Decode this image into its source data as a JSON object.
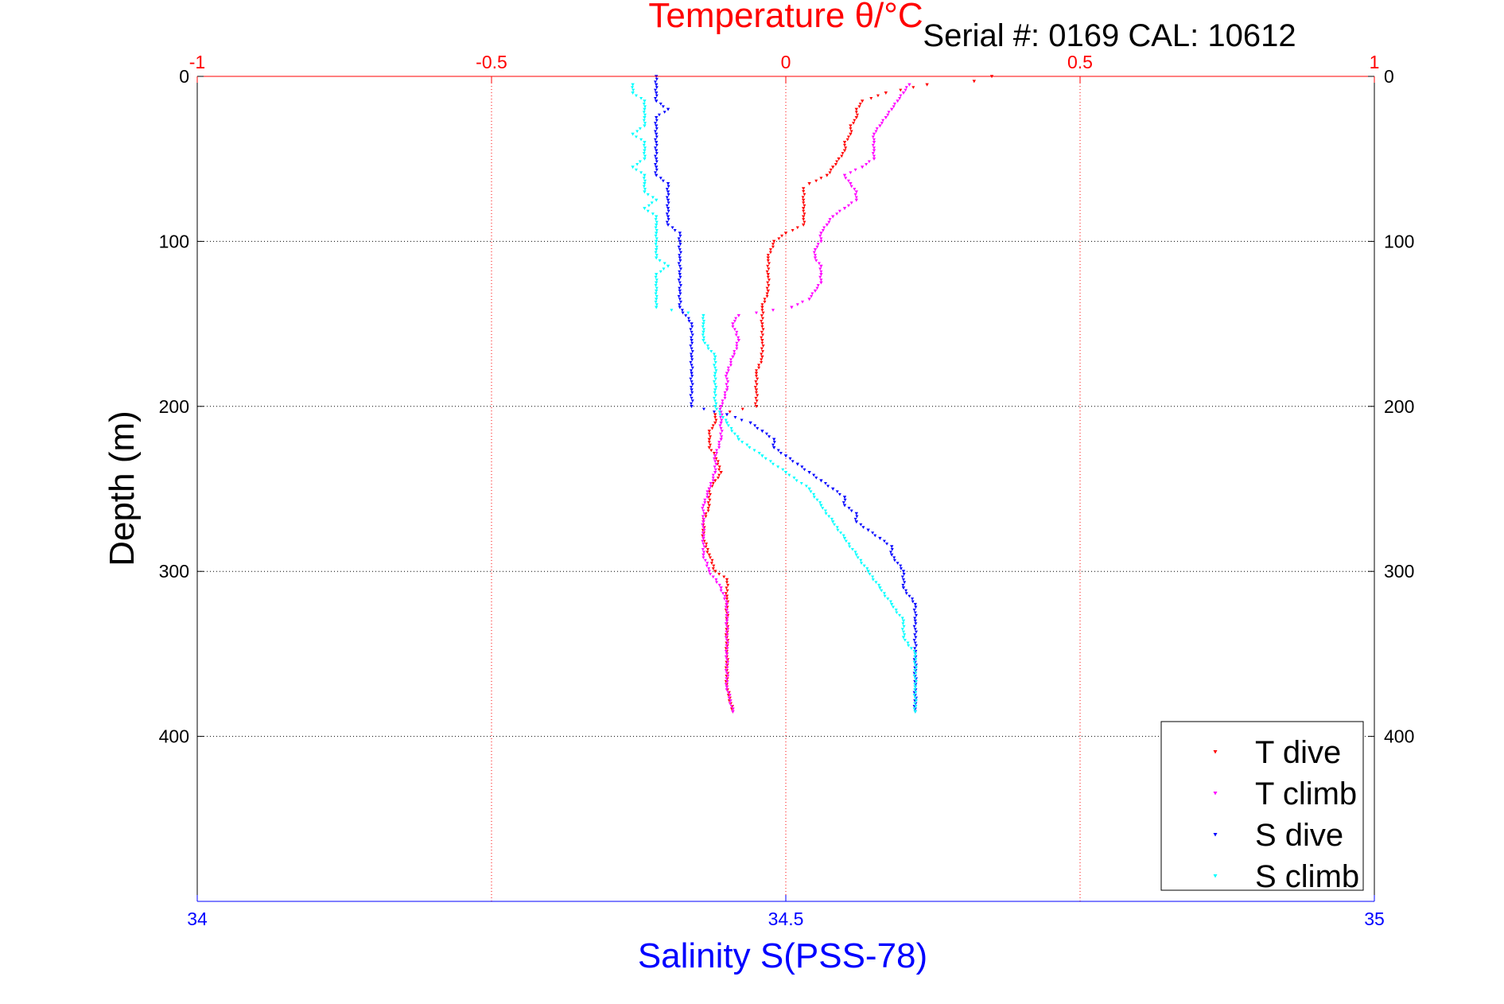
{
  "chart_data": {
    "type": "scatter",
    "title": "Temperature θ/°C",
    "subtitle": "Serial #: 0169 CAL: 10612",
    "ylabel": "Depth (m)",
    "xlabel": "Salinity S(PSS-78)",
    "y_axis": {
      "range": [
        0,
        500
      ],
      "reversed": true,
      "ticks": [
        0,
        100,
        200,
        300,
        400
      ],
      "tick_labels": [
        "0",
        "100",
        "200",
        "300",
        "400"
      ]
    },
    "x_top_temperature": {
      "range": [
        -1,
        1
      ],
      "ticks": [
        -1,
        -0.5,
        0,
        0.5,
        1
      ],
      "tick_labels": [
        "-1",
        "-0.5",
        "0",
        "0.5",
        "1"
      ]
    },
    "x_bottom_salinity": {
      "range": [
        34,
        35
      ],
      "ticks": [
        34,
        34.5,
        35
      ],
      "tick_labels": [
        "34",
        "34.5",
        "35"
      ]
    },
    "grid": true,
    "legend_position": "bottom-right",
    "series": [
      {
        "name": "T dive",
        "axis": "temperature",
        "color": "#ff0000",
        "points": [
          [
            0.35,
            0
          ],
          [
            0.32,
            3
          ],
          [
            0.24,
            5
          ],
          [
            0.17,
            10
          ],
          [
            0.13,
            15
          ],
          [
            0.12,
            20
          ],
          [
            0.12,
            25
          ],
          [
            0.11,
            30
          ],
          [
            0.11,
            35
          ],
          [
            0.1,
            40
          ],
          [
            0.1,
            45
          ],
          [
            0.09,
            50
          ],
          [
            0.08,
            55
          ],
          [
            0.07,
            60
          ],
          [
            0.04,
            65
          ],
          [
            0.03,
            68
          ],
          [
            0.03,
            75
          ],
          [
            0.03,
            80
          ],
          [
            0.03,
            85
          ],
          [
            0.03,
            90
          ],
          [
            0.0,
            95
          ],
          [
            -0.02,
            100
          ],
          [
            -0.03,
            110
          ],
          [
            -0.03,
            120
          ],
          [
            -0.03,
            130
          ],
          [
            -0.04,
            140
          ],
          [
            -0.04,
            150
          ],
          [
            -0.04,
            160
          ],
          [
            -0.04,
            170
          ],
          [
            -0.05,
            180
          ],
          [
            -0.05,
            190
          ],
          [
            -0.05,
            200
          ],
          [
            -0.12,
            205
          ],
          [
            -0.12,
            210
          ],
          [
            -0.13,
            215
          ],
          [
            -0.13,
            220
          ],
          [
            -0.13,
            225
          ],
          [
            -0.12,
            230
          ],
          [
            -0.11,
            240
          ],
          [
            -0.12,
            245
          ],
          [
            -0.13,
            250
          ],
          [
            -0.13,
            260
          ],
          [
            -0.14,
            270
          ],
          [
            -0.14,
            280
          ],
          [
            -0.13,
            290
          ],
          [
            -0.12,
            300
          ],
          [
            -0.1,
            305
          ],
          [
            -0.1,
            315
          ],
          [
            -0.1,
            330
          ],
          [
            -0.1,
            350
          ],
          [
            -0.1,
            370
          ],
          [
            -0.09,
            385
          ]
        ]
      },
      {
        "name": "T climb",
        "axis": "temperature",
        "color": "#ff00ff",
        "points": [
          [
            0.21,
            5
          ],
          [
            0.2,
            10
          ],
          [
            0.19,
            15
          ],
          [
            0.18,
            20
          ],
          [
            0.17,
            25
          ],
          [
            0.16,
            30
          ],
          [
            0.15,
            35
          ],
          [
            0.15,
            40
          ],
          [
            0.15,
            45
          ],
          [
            0.15,
            50
          ],
          [
            0.13,
            55
          ],
          [
            0.1,
            60
          ],
          [
            0.11,
            65
          ],
          [
            0.12,
            70
          ],
          [
            0.12,
            75
          ],
          [
            0.1,
            80
          ],
          [
            0.08,
            85
          ],
          [
            0.07,
            90
          ],
          [
            0.06,
            95
          ],
          [
            0.06,
            100
          ],
          [
            0.05,
            105
          ],
          [
            0.05,
            110
          ],
          [
            0.06,
            115
          ],
          [
            0.06,
            120
          ],
          [
            0.06,
            125
          ],
          [
            0.05,
            130
          ],
          [
            0.04,
            135
          ],
          [
            0.01,
            140
          ],
          [
            -0.08,
            145
          ],
          [
            -0.09,
            150
          ],
          [
            -0.08,
            160
          ],
          [
            -0.09,
            170
          ],
          [
            -0.1,
            180
          ],
          [
            -0.1,
            190
          ],
          [
            -0.11,
            200
          ],
          [
            -0.11,
            210
          ],
          [
            -0.11,
            220
          ],
          [
            -0.12,
            230
          ],
          [
            -0.12,
            240
          ],
          [
            -0.13,
            250
          ],
          [
            -0.14,
            260
          ],
          [
            -0.14,
            270
          ],
          [
            -0.14,
            280
          ],
          [
            -0.14,
            290
          ],
          [
            -0.13,
            300
          ],
          [
            -0.11,
            310
          ],
          [
            -0.1,
            320
          ],
          [
            -0.1,
            330
          ],
          [
            -0.1,
            350
          ],
          [
            -0.1,
            370
          ],
          [
            -0.09,
            385
          ]
        ]
      },
      {
        "name": "S dive",
        "axis": "salinity",
        "color": "#0000ff",
        "points": [
          [
            34.39,
            0
          ],
          [
            34.39,
            5
          ],
          [
            34.39,
            10
          ],
          [
            34.39,
            15
          ],
          [
            34.4,
            20
          ],
          [
            34.39,
            25
          ],
          [
            34.39,
            30
          ],
          [
            34.39,
            35
          ],
          [
            34.39,
            40
          ],
          [
            34.39,
            45
          ],
          [
            34.39,
            50
          ],
          [
            34.39,
            55
          ],
          [
            34.39,
            60
          ],
          [
            34.4,
            65
          ],
          [
            34.4,
            70
          ],
          [
            34.4,
            75
          ],
          [
            34.4,
            80
          ],
          [
            34.4,
            85
          ],
          [
            34.4,
            90
          ],
          [
            34.41,
            95
          ],
          [
            34.41,
            100
          ],
          [
            34.41,
            110
          ],
          [
            34.41,
            120
          ],
          [
            34.41,
            130
          ],
          [
            34.41,
            140
          ],
          [
            34.42,
            150
          ],
          [
            34.42,
            160
          ],
          [
            34.42,
            170
          ],
          [
            34.42,
            180
          ],
          [
            34.42,
            190
          ],
          [
            34.42,
            200
          ],
          [
            34.45,
            205
          ],
          [
            34.47,
            210
          ],
          [
            34.48,
            215
          ],
          [
            34.49,
            220
          ],
          [
            34.49,
            225
          ],
          [
            34.5,
            230
          ],
          [
            34.51,
            235
          ],
          [
            34.52,
            240
          ],
          [
            34.53,
            245
          ],
          [
            34.54,
            250
          ],
          [
            34.55,
            255
          ],
          [
            34.55,
            260
          ],
          [
            34.56,
            265
          ],
          [
            34.56,
            270
          ],
          [
            34.57,
            275
          ],
          [
            34.58,
            280
          ],
          [
            34.59,
            285
          ],
          [
            34.59,
            290
          ],
          [
            34.6,
            300
          ],
          [
            34.6,
            310
          ],
          [
            34.61,
            320
          ],
          [
            34.61,
            330
          ],
          [
            34.61,
            350
          ],
          [
            34.61,
            370
          ],
          [
            34.61,
            385
          ]
        ]
      },
      {
        "name": "S climb",
        "axis": "salinity",
        "color": "#00ffff",
        "points": [
          [
            34.37,
            5
          ],
          [
            34.37,
            10
          ],
          [
            34.38,
            15
          ],
          [
            34.38,
            20
          ],
          [
            34.38,
            25
          ],
          [
            34.38,
            30
          ],
          [
            34.37,
            35
          ],
          [
            34.38,
            40
          ],
          [
            34.38,
            45
          ],
          [
            34.38,
            50
          ],
          [
            34.37,
            55
          ],
          [
            34.38,
            60
          ],
          [
            34.38,
            65
          ],
          [
            34.38,
            70
          ],
          [
            34.39,
            75
          ],
          [
            34.38,
            80
          ],
          [
            34.39,
            85
          ],
          [
            34.39,
            90
          ],
          [
            34.39,
            95
          ],
          [
            34.39,
            100
          ],
          [
            34.39,
            105
          ],
          [
            34.39,
            110
          ],
          [
            34.4,
            115
          ],
          [
            34.39,
            120
          ],
          [
            34.39,
            125
          ],
          [
            34.39,
            130
          ],
          [
            34.39,
            135
          ],
          [
            34.39,
            140
          ],
          [
            34.43,
            145
          ],
          [
            34.43,
            150
          ],
          [
            34.43,
            155
          ],
          [
            34.43,
            160
          ],
          [
            34.44,
            170
          ],
          [
            34.44,
            180
          ],
          [
            34.44,
            190
          ],
          [
            34.44,
            200
          ],
          [
            34.45,
            210
          ],
          [
            34.46,
            220
          ],
          [
            34.48,
            230
          ],
          [
            34.5,
            240
          ],
          [
            34.52,
            250
          ],
          [
            34.53,
            260
          ],
          [
            34.54,
            270
          ],
          [
            34.55,
            280
          ],
          [
            34.56,
            290
          ],
          [
            34.57,
            300
          ],
          [
            34.58,
            310
          ],
          [
            34.59,
            320
          ],
          [
            34.6,
            330
          ],
          [
            34.6,
            340
          ],
          [
            34.61,
            350
          ],
          [
            34.61,
            370
          ],
          [
            34.61,
            385
          ]
        ]
      }
    ]
  }
}
